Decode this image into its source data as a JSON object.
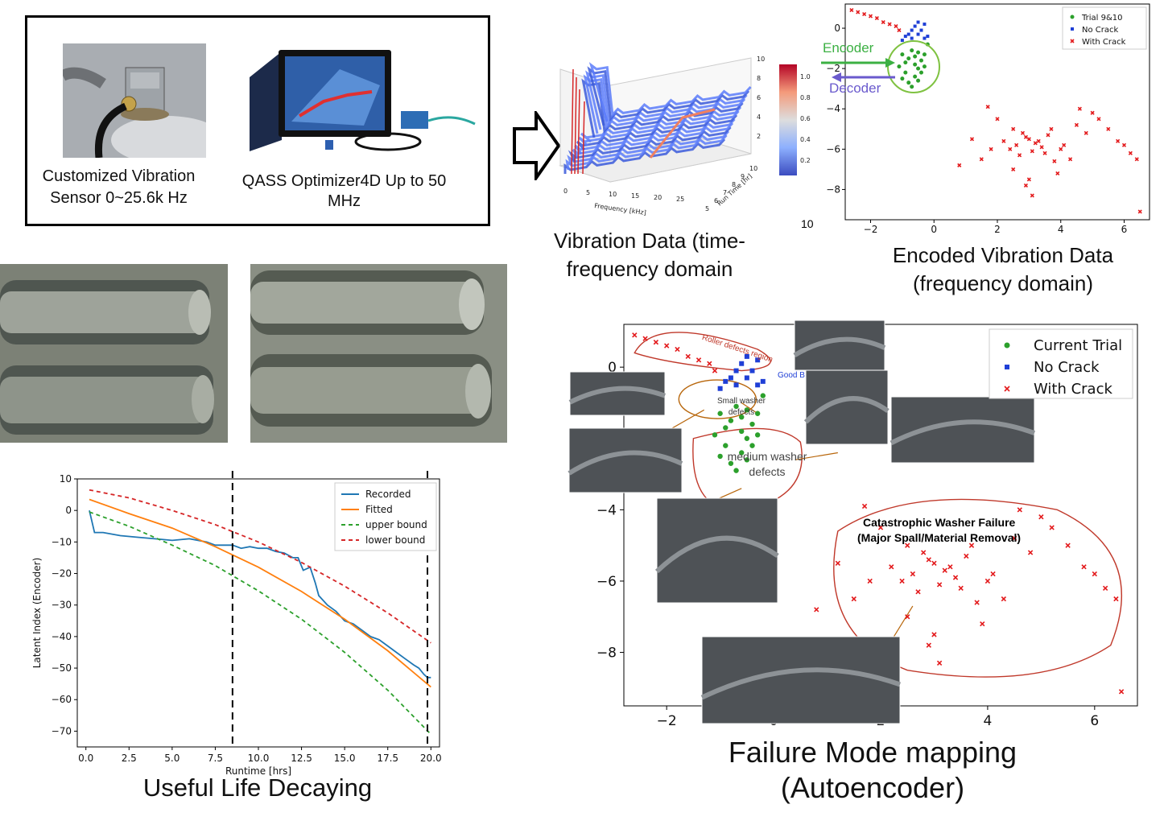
{
  "hardware": {
    "sensor_caption": "Customized Vibration Sensor 0~25.6k Hz",
    "optimizer_caption": "QASS Optimizer4D Up to 50 MHz"
  },
  "captions": {
    "vibration_data": "Vibration Data (time-frequency domain",
    "encoded_data": "Encoded Vibration Data (frequency domain)",
    "useful_life": "Useful Life Decaying",
    "failure_mode": "Failure Mode mapping (Autoencoder)"
  },
  "encoder_labels": {
    "encoder": "Encoder",
    "decoder": "Decoder"
  },
  "stray_label": "10",
  "waterfall": {
    "xlabel": "Frequency [kHz]",
    "ylabel": "Run Time [hr]",
    "x_ticks": [
      "0",
      "5",
      "10",
      "15",
      "20",
      "25"
    ],
    "y_ticks": [
      "5",
      "6",
      "7",
      "8",
      "9",
      "10"
    ],
    "z_ticks": [
      "2",
      "4",
      "6",
      "8",
      "10"
    ],
    "colorbar_ticks": [
      "0.2",
      "0.4",
      "0.6",
      "0.8",
      "1.0"
    ]
  },
  "annotations": {
    "roller_defects": "Roller defects region",
    "good": "Good B",
    "small_washer": "Small washer defects",
    "medium_washer": "medium washer defects",
    "catastrophic_1": "Catastrophic Washer Failure",
    "catastrophic_2": "(Major Spall/Material Removal)"
  },
  "colors": {
    "recorded": "#1f77b4",
    "fitted": "#ff7f0e",
    "upper": "#2ca02c",
    "lower": "#d62728",
    "encoder": "#3cb043",
    "decoder": "#6a5acd",
    "annotation": "#c0392b"
  },
  "chart_data": [
    {
      "type": "line",
      "xlabel": "Runtime [hrs]",
      "ylabel": "Latent Index (Encoder)",
      "xlim": [
        -0.5,
        20.5
      ],
      "ylim": [
        -75,
        10
      ],
      "x_ticks": [
        0.0,
        2.5,
        5.0,
        7.5,
        10.0,
        12.5,
        15.0,
        17.5,
        20.0
      ],
      "x_tick_labels": [
        "0.0",
        "2.5",
        "5.0",
        "7.5",
        "10.0",
        "12.5",
        "15.0",
        "17.5",
        "20.0"
      ],
      "y_ticks": [
        10,
        0,
        -10,
        -20,
        -30,
        -40,
        -50,
        -60,
        -70
      ],
      "y_tick_labels": [
        "10",
        "0",
        "−10",
        "−20",
        "−30",
        "−40",
        "−50",
        "−60",
        "−70"
      ],
      "legend_position": "top-right",
      "vlines": [
        8.5,
        19.8
      ],
      "series": [
        {
          "name": "Recorded",
          "x": [
            0.2,
            0.5,
            1.0,
            2.0,
            3.0,
            4.0,
            5.0,
            6.0,
            7.0,
            7.5,
            8.0,
            8.5,
            9.0,
            9.5,
            10.0,
            10.5,
            11.0,
            11.5,
            12.0,
            12.3,
            12.6,
            13.0,
            13.3,
            13.5,
            14.0,
            14.5,
            15.0,
            15.5,
            16.0,
            16.5,
            17.0,
            17.5,
            18.0,
            18.5,
            19.0,
            19.3,
            19.6,
            19.8,
            20.0
          ],
          "y": [
            0,
            -7,
            -7,
            -8,
            -8.5,
            -9,
            -9.5,
            -9,
            -10,
            -11,
            -11,
            -11,
            -12,
            -11.5,
            -12,
            -12,
            -13,
            -13.5,
            -15,
            -15,
            -19,
            -18,
            -23,
            -27,
            -30,
            -32,
            -35,
            -36,
            -38,
            -40,
            -41,
            -43,
            -45,
            -47,
            -49,
            -50,
            -52,
            -53,
            -53
          ]
        },
        {
          "name": "Fitted",
          "x": [
            0.2,
            2.5,
            5.0,
            7.5,
            10.0,
            12.5,
            15.0,
            17.5,
            20.0
          ],
          "y": [
            3.5,
            -1,
            -5.6,
            -11.5,
            -18,
            -25.7,
            -34.5,
            -44.5,
            -56
          ]
        },
        {
          "name": "upper bound",
          "x": [
            0.2,
            2.5,
            5.0,
            7.5,
            10.0,
            12.5,
            15.0,
            17.5,
            20.0
          ],
          "y": [
            -0.5,
            -5,
            -11,
            -17.5,
            -25.5,
            -34.5,
            -45,
            -57,
            -71
          ]
        },
        {
          "name": "lower bound",
          "x": [
            0.2,
            2.5,
            5.0,
            7.5,
            10.0,
            12.5,
            15.0,
            17.5,
            20.0
          ],
          "y": [
            6.5,
            4,
            0,
            -4.5,
            -10,
            -16.5,
            -24,
            -32.5,
            -42
          ]
        }
      ]
    },
    {
      "type": "scatter",
      "xlim": [
        -2.8,
        6.8
      ],
      "ylim": [
        -9.5,
        1.2
      ],
      "x_ticks": [
        -2,
        0,
        2,
        4,
        6
      ],
      "x_tick_labels": [
        "−2",
        "0",
        "2",
        "4",
        "6"
      ],
      "y_ticks": [
        0,
        -2,
        -4,
        -6,
        -8
      ],
      "y_tick_labels": [
        "0",
        "−2",
        "−4",
        "−6",
        "−8"
      ],
      "legend_position": "top-right",
      "series": [
        {
          "name": "Trial 9&10",
          "color": "#2ca02c",
          "points": [
            [
              -1.0,
              -1.3
            ],
            [
              -0.8,
              -1.5
            ],
            [
              -0.6,
              -1.8
            ],
            [
              -0.9,
              -2.2
            ],
            [
              -0.5,
              -2.0
            ],
            [
              -0.7,
              -1.1
            ],
            [
              -0.4,
              -1.6
            ],
            [
              -0.6,
              -2.4
            ],
            [
              -0.3,
              -1.3
            ],
            [
              -0.8,
              -2.7
            ],
            [
              -1.1,
              -1.9
            ],
            [
              -0.5,
              -2.6
            ],
            [
              -0.2,
              -0.8
            ],
            [
              -0.4,
              -2.2
            ],
            [
              -0.7,
              -2.9
            ],
            [
              -0.6,
              -1.4
            ],
            [
              -0.9,
              -1.7
            ],
            [
              -0.3,
              -1.9
            ],
            [
              -1.0,
              -2.5
            ],
            [
              -0.5,
              -1.2
            ]
          ]
        },
        {
          "name": "No Crack",
          "color": "#1f3fd6",
          "points": [
            [
              -1.0,
              -0.6
            ],
            [
              -0.9,
              -0.4
            ],
            [
              -0.8,
              -0.3
            ],
            [
              -0.7,
              -0.1
            ],
            [
              -0.6,
              0.1
            ],
            [
              -0.5,
              -0.3
            ],
            [
              -0.4,
              -0.1
            ],
            [
              -0.3,
              0.2
            ],
            [
              -0.2,
              -0.4
            ],
            [
              -0.5,
              0.3
            ],
            [
              -0.7,
              -0.5
            ],
            [
              -0.3,
              -0.5
            ]
          ]
        },
        {
          "name": "With Crack",
          "color": "#e31a1c",
          "points": [
            [
              -2.6,
              0.9
            ],
            [
              -2.4,
              0.8
            ],
            [
              -2.2,
              0.7
            ],
            [
              -2.0,
              0.6
            ],
            [
              -1.8,
              0.5
            ],
            [
              -1.6,
              0.3
            ],
            [
              -1.4,
              0.2
            ],
            [
              -1.2,
              0.1
            ],
            [
              -1.1,
              -0.1
            ],
            [
              2.0,
              -4.5
            ],
            [
              2.5,
              -5.0
            ],
            [
              2.8,
              -5.2
            ],
            [
              3.0,
              -5.5
            ],
            [
              3.2,
              -5.7
            ],
            [
              3.4,
              -5.9
            ],
            [
              2.6,
              -5.8
            ],
            [
              3.1,
              -6.1
            ],
            [
              2.9,
              -5.4
            ],
            [
              3.3,
              -5.6
            ],
            [
              3.5,
              -6.2
            ],
            [
              2.7,
              -6.3
            ],
            [
              2.4,
              -6.0
            ],
            [
              3.6,
              -5.3
            ],
            [
              2.2,
              -5.6
            ],
            [
              1.8,
              -6.0
            ],
            [
              1.5,
              -6.5
            ],
            [
              1.2,
              -5.5
            ],
            [
              0.8,
              -6.8
            ],
            [
              3.8,
              -6.6
            ],
            [
              4.0,
              -6.0
            ],
            [
              4.3,
              -6.5
            ],
            [
              3.9,
              -7.2
            ],
            [
              2.5,
              -7.0
            ],
            [
              3.0,
              -7.5
            ],
            [
              3.1,
              -8.3
            ],
            [
              2.9,
              -7.8
            ],
            [
              4.5,
              -4.8
            ],
            [
              4.8,
              -5.2
            ],
            [
              5.2,
              -4.5
            ],
            [
              5.5,
              -5.0
            ],
            [
              5.8,
              -5.6
            ],
            [
              6.0,
              -5.8
            ],
            [
              6.2,
              -6.2
            ],
            [
              4.6,
              -4.0
            ],
            [
              5.0,
              -4.2
            ],
            [
              6.4,
              -6.5
            ],
            [
              6.5,
              -9.1
            ],
            [
              1.7,
              -3.9
            ],
            [
              3.7,
              -5.0
            ],
            [
              4.1,
              -5.8
            ]
          ]
        }
      ]
    }
  ]
}
